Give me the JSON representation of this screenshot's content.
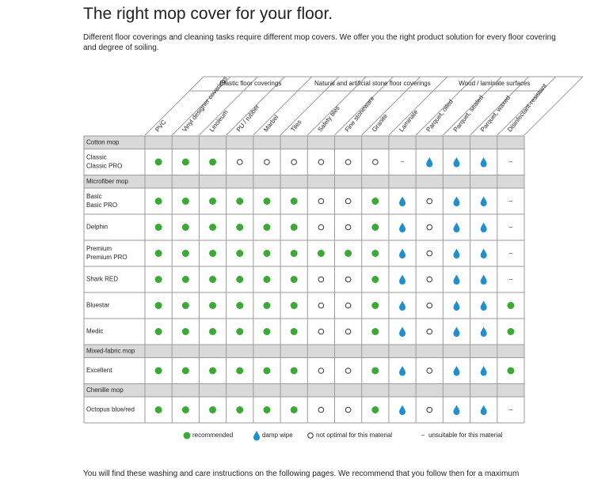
{
  "header": {
    "title": "The right mop cover for your floor.",
    "intro": "Different floor coverings and cleaning tasks require different mop covers. We offer you the right product solution for every floor covering and degree of soiling."
  },
  "table": {
    "groups": [
      {
        "label": "Elastic floor coverings",
        "span": 4
      },
      {
        "label": "Natural and artificial stone floor coverings",
        "span": 5
      },
      {
        "label": "Wood / laminate surfaces",
        "span": 4
      }
    ],
    "columns": [
      "PVC",
      "Vinyl designer coverings",
      "Linoleum",
      "PU / rubber",
      "Marbel",
      "Tiles",
      "Safety tiles",
      "Fine stoneware",
      "Granite",
      "Laminate",
      "Parquet, oiled",
      "Parquet, sealed",
      "Parquet, waxed",
      "Disinfectant-resistant"
    ],
    "sections": [
      {
        "title": "Cotton mop",
        "rows": [
          {
            "name": [
              "Classic",
              "Classic PRO"
            ],
            "cells": [
              "●",
              "●",
              "●",
              "○",
              "○",
              "○",
              "○",
              "○",
              "○",
              "–",
              "💧",
              "💧",
              "💧",
              "–"
            ]
          }
        ]
      },
      {
        "title": "Microfiber mop",
        "rows": [
          {
            "name": [
              "Basic",
              "Basic PRO"
            ],
            "cells": [
              "●",
              "●",
              "●",
              "●",
              "●",
              "●",
              "○",
              "○",
              "●",
              "💧",
              "○",
              "💧",
              "💧",
              "–"
            ]
          },
          {
            "name": [
              "Delphin"
            ],
            "cells": [
              "●",
              "●",
              "●",
              "●",
              "●",
              "●",
              "○",
              "○",
              "●",
              "💧",
              "○",
              "💧",
              "💧",
              "–"
            ]
          },
          {
            "name": [
              "Premium",
              "Premium PRO"
            ],
            "cells": [
              "●",
              "●",
              "●",
              "●",
              "●",
              "●",
              "●",
              "●",
              "●",
              "💧",
              "○",
              "💧",
              "💧",
              "–"
            ]
          },
          {
            "name": [
              "Shark RED"
            ],
            "cells": [
              "●",
              "●",
              "●",
              "●",
              "●",
              "●",
              "○",
              "○",
              "●",
              "💧",
              "○",
              "💧",
              "💧",
              "–"
            ]
          },
          {
            "name": [
              "Bluestar"
            ],
            "cells": [
              "●",
              "●",
              "●",
              "●",
              "●",
              "●",
              "○",
              "○",
              "●",
              "💧",
              "○",
              "💧",
              "💧",
              "●"
            ]
          },
          {
            "name": [
              "Medic"
            ],
            "cells": [
              "●",
              "●",
              "●",
              "●",
              "●",
              "●",
              "○",
              "○",
              "●",
              "💧",
              "○",
              "💧",
              "💧",
              "●"
            ]
          }
        ]
      },
      {
        "title": "Mixed-fabric mop",
        "rows": [
          {
            "name": [
              "Excellent"
            ],
            "cells": [
              "●",
              "●",
              "●",
              "●",
              "●",
              "●",
              "○",
              "○",
              "●",
              "💧",
              "○",
              "💧",
              "💧",
              "●"
            ]
          }
        ]
      },
      {
        "title": "Chenille mop",
        "rows": [
          {
            "name": [
              "Octopus blue/red"
            ],
            "cells": [
              "●",
              "●",
              "●",
              "●",
              "●",
              "●",
              "○",
              "○",
              "●",
              "💧",
              "○",
              "💧",
              "💧",
              "–"
            ]
          }
        ]
      }
    ]
  },
  "legend": [
    {
      "symbol": "●",
      "label": "recommended"
    },
    {
      "symbol": "💧",
      "label": "damp wipe"
    },
    {
      "symbol": "○",
      "label": "not optimal for this material"
    },
    {
      "symbol": "–",
      "label": "unsuitable for this material"
    }
  ],
  "footer": {
    "text": "You will find these washing and care instructions on the following pages. We recommend that you follow then for a maximum"
  }
}
